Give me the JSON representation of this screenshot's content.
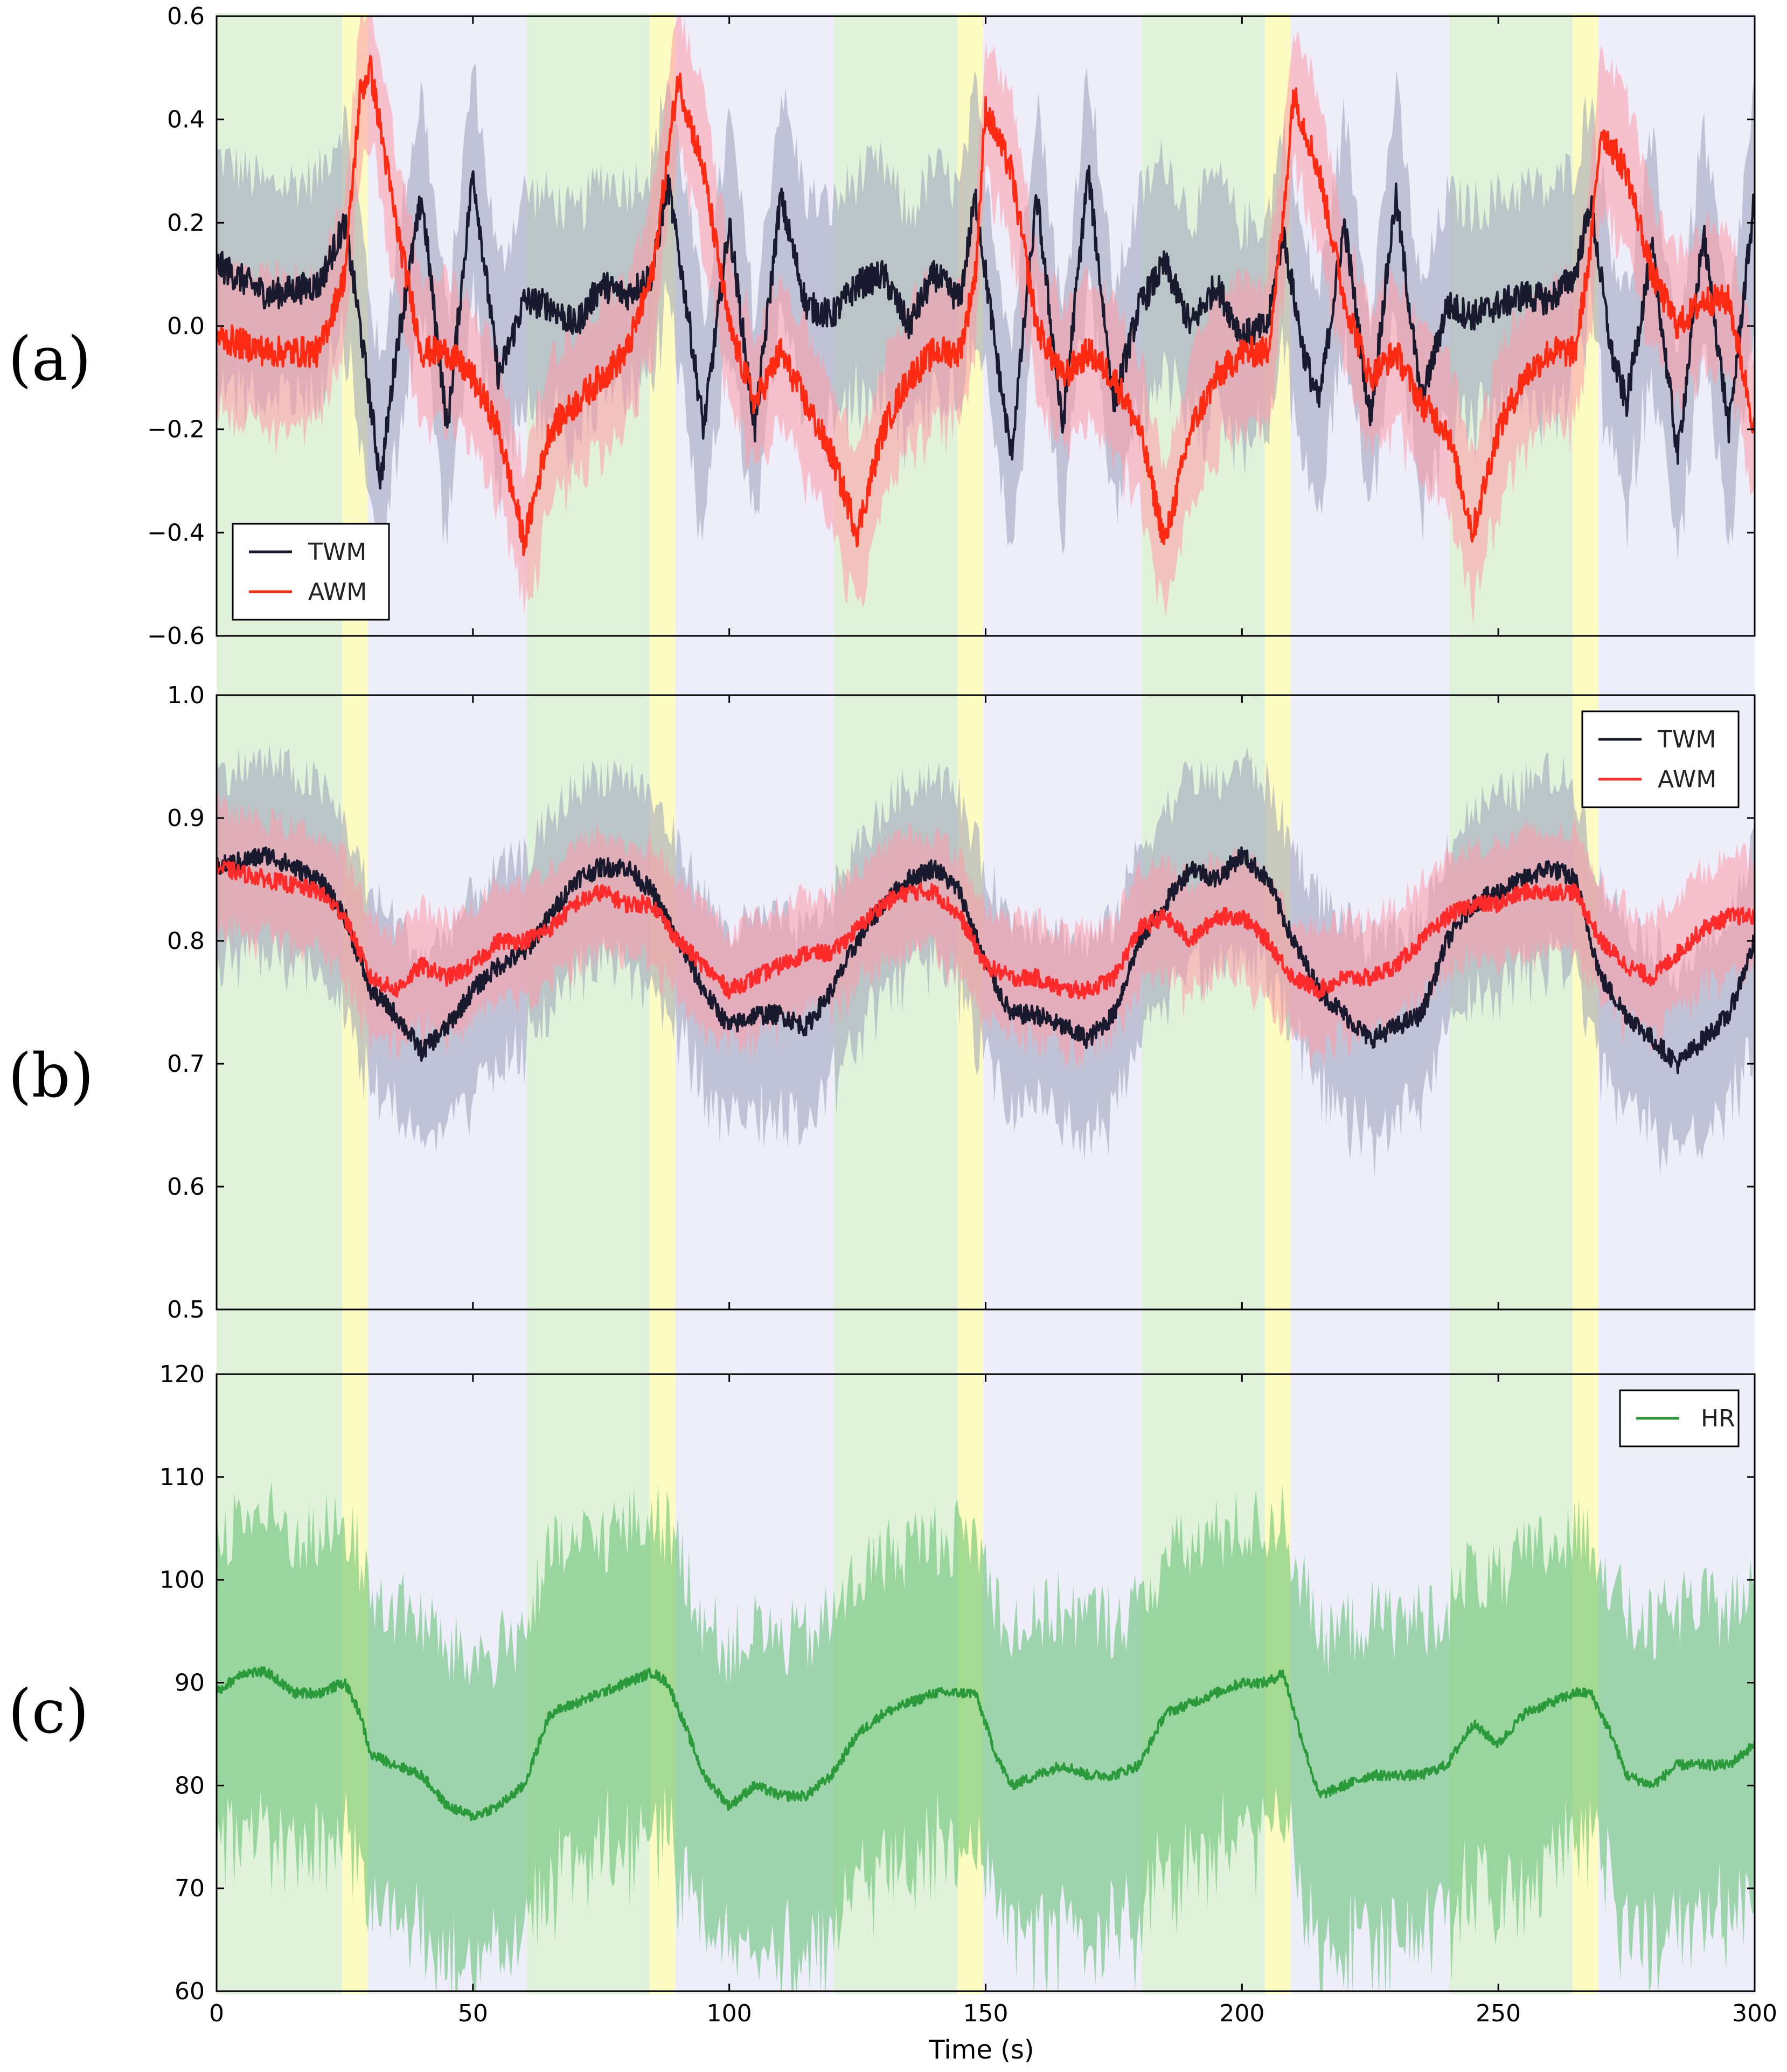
{
  "chart_data": [
    {
      "type": "line",
      "panel_label": "(a)",
      "xlim": [
        0,
        300
      ],
      "ylim": [
        -0.6,
        0.6
      ],
      "yticks": [
        0.6,
        0.4,
        0.2,
        0.0,
        -0.2,
        -0.4,
        -0.6
      ],
      "ytick_labels": [
        "0.6",
        "0.4",
        "0.2",
        "0.0",
        "−0.2",
        "−0.4",
        "−0.6"
      ],
      "legend_position": "lower-left",
      "series": [
        {
          "name": "TWM",
          "color": "#1a1a2e",
          "band_color": "#9aa0b8",
          "band_halfwidth": 0.22,
          "noise": 0.03,
          "x": [
            0,
            10,
            20,
            25,
            28,
            32,
            35,
            40,
            45,
            50,
            55,
            60,
            65,
            70,
            75,
            80,
            85,
            88,
            92,
            95,
            100,
            105,
            110,
            115,
            120,
            125,
            130,
            135,
            140,
            145,
            148,
            152,
            155,
            160,
            165,
            170,
            175,
            180,
            185,
            190,
            195,
            200,
            205,
            208,
            212,
            215,
            220,
            225,
            230,
            235,
            240,
            245,
            250,
            255,
            260,
            265,
            268,
            272,
            275,
            280,
            285,
            290,
            295,
            300
          ],
          "values": [
            0.12,
            0.06,
            0.08,
            0.2,
            0.0,
            -0.3,
            -0.05,
            0.25,
            -0.2,
            0.3,
            -0.1,
            0.05,
            0.04,
            0.0,
            0.08,
            0.06,
            0.1,
            0.28,
            0.02,
            -0.2,
            0.2,
            -0.2,
            0.25,
            0.04,
            0.02,
            0.08,
            0.1,
            0.0,
            0.1,
            0.05,
            0.25,
            -0.05,
            -0.25,
            0.25,
            -0.2,
            0.3,
            -0.15,
            0.04,
            0.12,
            0.0,
            0.08,
            -0.02,
            0.0,
            0.18,
            -0.05,
            -0.15,
            0.2,
            -0.18,
            0.25,
            -0.15,
            0.04,
            0.02,
            0.04,
            0.06,
            0.05,
            0.1,
            0.24,
            -0.05,
            -0.15,
            0.15,
            -0.25,
            0.18,
            -0.2,
            0.25
          ]
        },
        {
          "name": "AWM",
          "color": "#ff2a12",
          "band_color": "#ff9aa8",
          "band_halfwidth": 0.15,
          "noise": 0.03,
          "x": [
            0,
            10,
            20,
            25,
            28,
            30,
            35,
            40,
            45,
            50,
            55,
            60,
            65,
            70,
            75,
            80,
            85,
            90,
            95,
            100,
            105,
            110,
            115,
            120,
            125,
            130,
            135,
            140,
            145,
            148,
            150,
            155,
            160,
            165,
            170,
            175,
            180,
            185,
            190,
            195,
            200,
            205,
            208,
            210,
            215,
            220,
            225,
            230,
            235,
            240,
            245,
            250,
            255,
            260,
            265,
            268,
            270,
            275,
            280,
            285,
            290,
            295,
            300
          ],
          "values": [
            -0.02,
            -0.05,
            -0.05,
            0.1,
            0.45,
            0.5,
            0.2,
            -0.05,
            -0.05,
            -0.1,
            -0.2,
            -0.42,
            -0.2,
            -0.15,
            -0.1,
            -0.05,
            0.1,
            0.48,
            0.3,
            0.0,
            -0.15,
            -0.05,
            -0.15,
            -0.25,
            -0.4,
            -0.2,
            -0.1,
            -0.05,
            -0.05,
            0.1,
            0.42,
            0.3,
            0.0,
            -0.1,
            -0.05,
            -0.1,
            -0.2,
            -0.42,
            -0.2,
            -0.1,
            -0.05,
            -0.05,
            0.2,
            0.45,
            0.3,
            0.05,
            -0.1,
            -0.05,
            -0.15,
            -0.2,
            -0.4,
            -0.2,
            -0.1,
            -0.05,
            -0.05,
            0.15,
            0.38,
            0.3,
            0.1,
            0.0,
            0.05,
            0.05,
            -0.2
          ]
        }
      ]
    },
    {
      "type": "line",
      "panel_label": "(b)",
      "xlim": [
        0,
        300
      ],
      "ylim": [
        0.5,
        1.0
      ],
      "yticks": [
        1.0,
        0.9,
        0.8,
        0.7,
        0.6,
        0.5
      ],
      "ytick_labels": [
        "1.0",
        "0.9",
        "0.8",
        "0.7",
        "0.6",
        "0.5"
      ],
      "legend_position": "top-right",
      "series": [
        {
          "name": "TWM",
          "color": "#1a1a2e",
          "band_color": "#9aa0b8",
          "band_halfwidth": 0.08,
          "noise": 0.008,
          "x": [
            0,
            10,
            20,
            25,
            30,
            35,
            40,
            45,
            50,
            55,
            60,
            65,
            70,
            75,
            80,
            85,
            90,
            95,
            100,
            105,
            110,
            115,
            120,
            125,
            130,
            135,
            140,
            145,
            150,
            155,
            160,
            165,
            170,
            175,
            180,
            185,
            190,
            195,
            200,
            205,
            210,
            215,
            220,
            225,
            230,
            235,
            240,
            245,
            250,
            255,
            260,
            265,
            270,
            275,
            280,
            285,
            290,
            295,
            300
          ],
          "values": [
            0.86,
            0.87,
            0.85,
            0.82,
            0.76,
            0.74,
            0.71,
            0.73,
            0.76,
            0.78,
            0.79,
            0.82,
            0.85,
            0.86,
            0.86,
            0.84,
            0.8,
            0.76,
            0.73,
            0.74,
            0.74,
            0.73,
            0.76,
            0.8,
            0.83,
            0.85,
            0.86,
            0.84,
            0.78,
            0.74,
            0.74,
            0.73,
            0.72,
            0.74,
            0.8,
            0.83,
            0.86,
            0.85,
            0.87,
            0.85,
            0.8,
            0.76,
            0.74,
            0.72,
            0.73,
            0.74,
            0.8,
            0.83,
            0.84,
            0.85,
            0.86,
            0.85,
            0.77,
            0.74,
            0.72,
            0.7,
            0.72,
            0.74,
            0.8
          ]
        },
        {
          "name": "AWM",
          "color": "#ff2a2a",
          "band_color": "#ff9aa8",
          "band_halfwidth": 0.05,
          "noise": 0.007,
          "x": [
            0,
            10,
            20,
            25,
            30,
            35,
            40,
            45,
            50,
            55,
            60,
            65,
            70,
            75,
            80,
            85,
            90,
            95,
            100,
            105,
            110,
            115,
            120,
            125,
            130,
            135,
            140,
            145,
            150,
            155,
            160,
            165,
            170,
            175,
            180,
            185,
            190,
            195,
            200,
            205,
            210,
            215,
            220,
            225,
            230,
            235,
            240,
            245,
            250,
            255,
            260,
            265,
            270,
            275,
            280,
            285,
            290,
            295,
            300
          ],
          "values": [
            0.86,
            0.85,
            0.84,
            0.82,
            0.77,
            0.76,
            0.78,
            0.77,
            0.78,
            0.8,
            0.8,
            0.81,
            0.83,
            0.84,
            0.83,
            0.83,
            0.8,
            0.78,
            0.76,
            0.77,
            0.78,
            0.79,
            0.79,
            0.81,
            0.83,
            0.84,
            0.84,
            0.82,
            0.78,
            0.77,
            0.77,
            0.76,
            0.76,
            0.77,
            0.81,
            0.82,
            0.8,
            0.82,
            0.82,
            0.8,
            0.77,
            0.76,
            0.77,
            0.77,
            0.78,
            0.8,
            0.82,
            0.83,
            0.83,
            0.84,
            0.84,
            0.84,
            0.8,
            0.78,
            0.77,
            0.79,
            0.81,
            0.82,
            0.82
          ]
        }
      ]
    },
    {
      "type": "line",
      "panel_label": "(c)",
      "xlim": [
        0,
        300
      ],
      "ylim": [
        60,
        120
      ],
      "yticks": [
        120,
        110,
        100,
        90,
        80,
        70,
        60
      ],
      "ytick_labels": [
        "120",
        "110",
        "100",
        "90",
        "80",
        "70",
        "60"
      ],
      "xticks": [
        0,
        50,
        100,
        150,
        200,
        250,
        300
      ],
      "xtick_labels": [
        "0",
        "50",
        "100",
        "150",
        "200",
        "250",
        "300"
      ],
      "xlabel": "Time (s)",
      "legend_position": "top-right",
      "series": [
        {
          "name": "HR",
          "color": "#2a9a3a",
          "band_color": "#5cbf6c",
          "band_halfwidth": 16,
          "noise": 0.5,
          "x": [
            0,
            5,
            10,
            15,
            20,
            25,
            28,
            30,
            35,
            40,
            45,
            50,
            55,
            60,
            65,
            70,
            75,
            80,
            85,
            88,
            92,
            95,
            100,
            105,
            110,
            115,
            120,
            125,
            130,
            135,
            140,
            145,
            148,
            152,
            155,
            160,
            165,
            170,
            175,
            180,
            185,
            190,
            195,
            200,
            205,
            208,
            212,
            215,
            220,
            225,
            230,
            235,
            240,
            245,
            250,
            255,
            260,
            265,
            268,
            272,
            275,
            280,
            285,
            290,
            295,
            300
          ],
          "values": [
            89,
            91,
            91,
            89,
            89,
            90,
            87,
            83,
            82,
            81,
            78,
            77,
            78,
            80,
            87,
            88,
            89,
            90,
            91,
            90,
            85,
            81,
            78,
            80,
            79,
            79,
            81,
            85,
            87,
            88,
            89,
            89,
            89,
            83,
            80,
            81,
            82,
            81,
            81,
            82,
            87,
            88,
            89,
            90,
            90,
            91,
            84,
            79,
            80,
            81,
            81,
            81,
            82,
            86,
            84,
            87,
            88,
            89,
            89,
            85,
            81,
            80,
            82,
            82,
            82,
            84
          ]
        }
      ]
    }
  ],
  "phase_bands": [
    {
      "start": 0,
      "end": 24.5,
      "phase": "green"
    },
    {
      "start": 24.5,
      "end": 29.5,
      "phase": "yellow"
    },
    {
      "start": 29.5,
      "end": 60.5,
      "phase": "lavender"
    },
    {
      "start": 60.5,
      "end": 84.5,
      "phase": "green"
    },
    {
      "start": 84.5,
      "end": 89.5,
      "phase": "yellow"
    },
    {
      "start": 89.5,
      "end": 120.5,
      "phase": "lavender"
    },
    {
      "start": 120.5,
      "end": 144.5,
      "phase": "green"
    },
    {
      "start": 144.5,
      "end": 149.5,
      "phase": "yellow"
    },
    {
      "start": 149.5,
      "end": 180.5,
      "phase": "lavender"
    },
    {
      "start": 180.5,
      "end": 204.5,
      "phase": "green"
    },
    {
      "start": 204.5,
      "end": 209.5,
      "phase": "yellow"
    },
    {
      "start": 209.5,
      "end": 240.5,
      "phase": "lavender"
    },
    {
      "start": 240.5,
      "end": 264.5,
      "phase": "green"
    },
    {
      "start": 264.5,
      "end": 269.5,
      "phase": "yellow"
    },
    {
      "start": 269.5,
      "end": 300,
      "phase": "lavender"
    }
  ],
  "phase_colors": {
    "green": "#e0f2da",
    "yellow": "#fbfbc2",
    "lavender": "#eeeefb"
  },
  "hr_band_color_lavender": "#b7dcd0"
}
